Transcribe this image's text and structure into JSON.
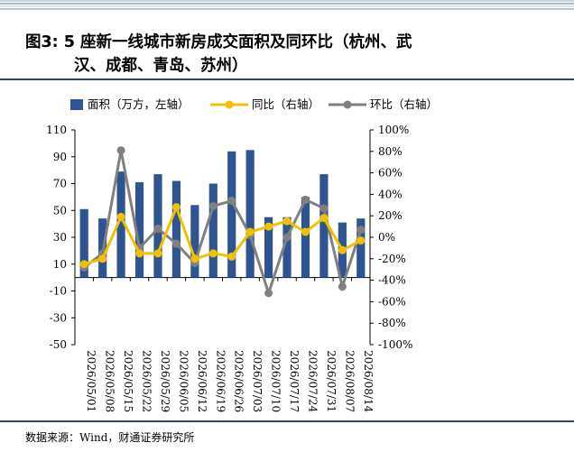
{
  "figure": {
    "title_line1": "图3: 5 座新一线城市新房成交面积及同环比（杭州、武",
    "title_line2": "汉、成都、青岛、苏州）",
    "source": "数据来源：Wind，财通证券研究所"
  },
  "colors": {
    "bar": "#2e5591",
    "yoy_line": "#f3c000",
    "mom_line": "#808080",
    "rule": "#27477c"
  },
  "chart_data": {
    "type": "bar+line",
    "categories": [
      "2026/05/01",
      "2026/05/08",
      "2026/05/15",
      "2026/05/22",
      "2026/05/29",
      "2026/06/05",
      "2026/06/12",
      "2026/06/19",
      "2026/06/26",
      "2026/07/03",
      "2026/07/10",
      "2026/07/17",
      "2026/07/24",
      "2026/07/31",
      "2026/08/07",
      "2026/08/14"
    ],
    "series": [
      {
        "name": "面积（万方，左轴）",
        "kind": "bar",
        "axis": "left",
        "values": [
          51,
          44,
          79,
          71,
          77,
          72,
          54,
          70,
          94,
          95,
          45,
          45,
          60,
          77,
          41,
          44
        ]
      },
      {
        "name": "同比（右轴）",
        "kind": "line",
        "axis": "right",
        "values": [
          -25,
          -20,
          19,
          -15,
          -15,
          28,
          -20,
          -15,
          -18,
          5,
          10,
          15,
          5,
          18,
          -12,
          -3
        ]
      },
      {
        "name": "环比（右轴）",
        "kind": "line",
        "axis": "right",
        "values": [
          -28,
          -15,
          81,
          -10,
          8,
          -6,
          -24,
          29,
          34,
          2,
          -52,
          0,
          35,
          27,
          -46,
          7
        ]
      }
    ],
    "y_left": {
      "min": -50,
      "max": 110,
      "step": 20,
      "ticks": [
        "110",
        "90",
        "70",
        "50",
        "30",
        "10",
        "-10",
        "-30",
        "-50"
      ]
    },
    "y_right": {
      "min": -100,
      "max": 100,
      "step": 20,
      "ticks": [
        "100%",
        "80%",
        "60%",
        "40%",
        "20%",
        "0%",
        "-20%",
        "-40%",
        "-60%",
        "-80%",
        "-100%"
      ]
    },
    "legend_position": "top",
    "grid": false
  }
}
